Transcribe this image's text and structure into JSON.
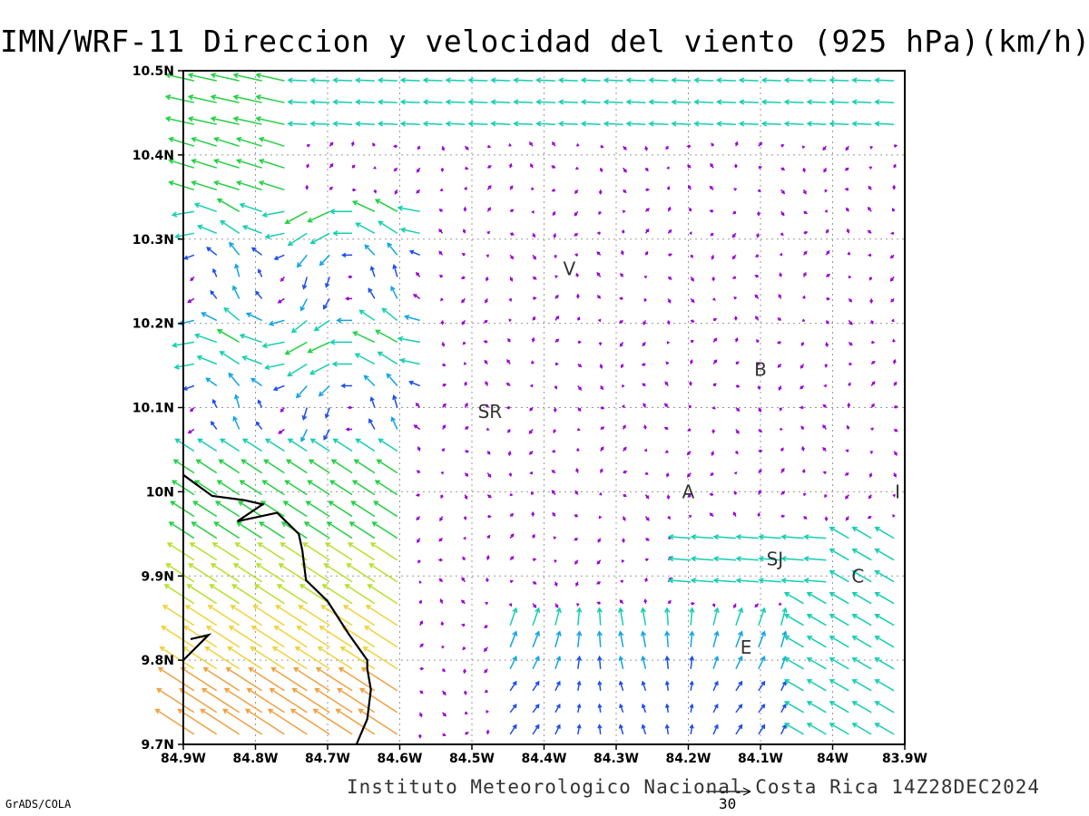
{
  "title": "IMN/WRF-11 Direccion y velocidad del viento (925 hPa)(km/h)",
  "credit": "Instituto Meteorologico Nacional Costa Rica 14Z28DEC2024",
  "software_label": "GrADS/COLA",
  "reference_vector_value": "30",
  "chart_data": {
    "type": "vector_field",
    "title": "IMN/WRF-11 Direccion y velocidad del viento (925 hPa)(km/h)",
    "units": "km/h",
    "level": "925 hPa",
    "x_axis": {
      "range": [
        -84.9,
        -83.9
      ],
      "tick_values": [
        -84.9,
        -84.8,
        -84.7,
        -84.6,
        -84.5,
        -84.4,
        -84.3,
        -84.2,
        -84.1,
        -84.0,
        -83.9
      ],
      "tick_labels": [
        "84.9W",
        "84.8W",
        "84.7W",
        "84.6W",
        "84.5W",
        "84.4W",
        "84.3W",
        "84.2W",
        "84.1W",
        "84W",
        "83.9W"
      ]
    },
    "y_axis": {
      "range": [
        9.7,
        10.5
      ],
      "tick_values": [
        9.7,
        9.8,
        9.9,
        10.0,
        10.1,
        10.2,
        10.3,
        10.4,
        10.5
      ],
      "tick_labels": [
        "9.7N",
        "9.8N",
        "9.9N",
        "10N",
        "10.1N",
        "10.2N",
        "10.3N",
        "10.4N",
        "10.5N"
      ]
    },
    "grid": true,
    "station_labels": [
      {
        "text": "V",
        "lon": -84.365,
        "lat": 10.265
      },
      {
        "text": "B",
        "lon": -84.1,
        "lat": 10.145
      },
      {
        "text": "SR",
        "lon": -84.475,
        "lat": 10.095
      },
      {
        "text": "A",
        "lon": -84.2,
        "lat": 10.0
      },
      {
        "text": "I",
        "lon": -83.91,
        "lat": 10.0
      },
      {
        "text": "SJ",
        "lon": -84.08,
        "lat": 9.92
      },
      {
        "text": "C",
        "lon": -83.965,
        "lat": 9.9
      },
      {
        "text": "E",
        "lon": -84.12,
        "lat": 9.815
      }
    ],
    "coastline": [
      [
        -84.9,
        10.02
      ],
      [
        -84.86,
        9.995
      ],
      [
        -84.815,
        9.99
      ],
      [
        -84.79,
        9.985
      ],
      [
        -84.825,
        9.965
      ],
      [
        -84.77,
        9.975
      ],
      [
        -84.74,
        9.95
      ],
      [
        -84.735,
        9.93
      ],
      [
        -84.73,
        9.895
      ],
      [
        -84.7,
        9.87
      ],
      [
        -84.67,
        9.83
      ],
      [
        -84.645,
        9.8
      ],
      [
        -84.645,
        9.79
      ],
      [
        -84.64,
        9.765
      ],
      [
        -84.645,
        9.73
      ],
      [
        -84.66,
        9.7
      ]
    ],
    "coastline_fragment": [
      [
        -84.9,
        9.8
      ],
      [
        -84.865,
        9.83
      ],
      [
        -84.89,
        9.825
      ]
    ],
    "wind_regions": [
      {
        "area": "north-west edge",
        "lon_range": [
          -84.9,
          -84.75
        ],
        "lat_range": [
          10.35,
          10.5
        ],
        "direction": "from east-north-east",
        "speed_kmh": 18
      },
      {
        "area": "northern band",
        "lon_range": [
          -84.7,
          -83.9
        ],
        "lat_range": [
          10.43,
          10.5
        ],
        "direction": "from east",
        "speed_kmh": 12
      },
      {
        "area": "western slope",
        "lon_range": [
          -84.9,
          -84.7
        ],
        "lat_range": [
          9.85,
          10.05
        ],
        "direction": "from south-east",
        "speed_kmh": 15
      },
      {
        "area": "south-west coast",
        "lon_range": [
          -84.9,
          -84.6
        ],
        "lat_range": [
          9.7,
          9.85
        ],
        "direction": "from south-east",
        "speed_kmh": 28
      },
      {
        "area": "central highlands",
        "lon_range": [
          -84.4,
          -84.0
        ],
        "lat_range": [
          9.95,
          10.35
        ],
        "direction": "variable",
        "speed_kmh": 5
      },
      {
        "area": "central valley jet",
        "lon_range": [
          -84.2,
          -84.05
        ],
        "lat_range": [
          9.9,
          9.97
        ],
        "direction": "from east",
        "speed_kmh": 14
      }
    ],
    "color_scale_note": "purple=light, blue, cyan, green, yellow, orange, red/magenta=strong"
  }
}
